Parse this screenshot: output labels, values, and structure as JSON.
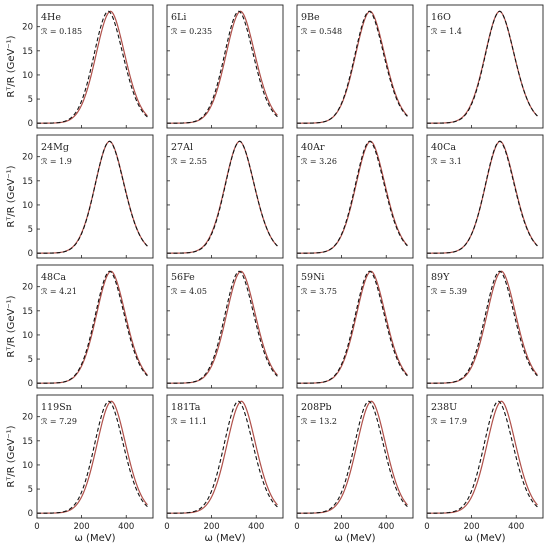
{
  "chart_data": {
    "type": "line",
    "grid": false,
    "layout": "4x4 panel grid, shared x axis per column, shared y axis per row",
    "xlabel": "ω (MeV)",
    "ylabel": "R^T/R (GeV^-1)",
    "xlim": [
      0,
      520
    ],
    "ylim": [
      -1,
      24.5
    ],
    "xticks": [
      0,
      200,
      400
    ],
    "yticks": [
      0,
      5,
      10,
      15,
      20
    ],
    "colors": {
      "solid": "#b0504a",
      "dashed": "#111111"
    },
    "shape": {
      "peak_y": 23.2,
      "width": 110,
      "tail_left": 0.45,
      "tail_right": 0.35
    },
    "panels": [
      {
        "nucleus": "4He",
        "ratio": "ℛ = 0.185",
        "solid_peak_x": 330,
        "dashed_peak_x": 320,
        "solid_tail": 0.53,
        "dashed_tail": 0.32
      },
      {
        "nucleus": "6Li",
        "ratio": "ℛ = 0.235",
        "solid_peak_x": 330,
        "dashed_peak_x": 322,
        "solid_tail": 0.4,
        "dashed_tail": 0.35
      },
      {
        "nucleus": "9Be",
        "ratio": "ℛ = 0.548",
        "solid_peak_x": 328,
        "dashed_peak_x": 324,
        "solid_tail": 0.39,
        "dashed_tail": 0.35
      },
      {
        "nucleus": "16O",
        "ratio": "ℛ = 1.4",
        "solid_peak_x": 326,
        "dashed_peak_x": 326,
        "solid_tail": 0.37,
        "dashed_tail": 0.37
      },
      {
        "nucleus": "24Mg",
        "ratio": "ℛ = 1.9",
        "solid_peak_x": 326,
        "dashed_peak_x": 325,
        "solid_tail": 0.38,
        "dashed_tail": 0.35
      },
      {
        "nucleus": "27Al",
        "ratio": "ℛ = 2.55",
        "solid_peak_x": 326,
        "dashed_peak_x": 326,
        "solid_tail": 0.37,
        "dashed_tail": 0.37
      },
      {
        "nucleus": "40Ar",
        "ratio": "ℛ = 3.26",
        "solid_peak_x": 330,
        "dashed_peak_x": 326,
        "solid_tail": 0.42,
        "dashed_tail": 0.35
      },
      {
        "nucleus": "40Ca",
        "ratio": "ℛ = 3.1",
        "solid_peak_x": 328,
        "dashed_peak_x": 326,
        "solid_tail": 0.4,
        "dashed_tail": 0.36
      },
      {
        "nucleus": "48Ca",
        "ratio": "ℛ = 4.21",
        "solid_peak_x": 332,
        "dashed_peak_x": 326,
        "solid_tail": 0.44,
        "dashed_tail": 0.35
      },
      {
        "nucleus": "56Fe",
        "ratio": "ℛ = 4.05",
        "solid_peak_x": 332,
        "dashed_peak_x": 324,
        "solid_tail": 0.46,
        "dashed_tail": 0.33
      },
      {
        "nucleus": "59Ni",
        "ratio": "ℛ = 3.75",
        "solid_peak_x": 332,
        "dashed_peak_x": 326,
        "solid_tail": 0.44,
        "dashed_tail": 0.35
      },
      {
        "nucleus": "89Y",
        "ratio": "ℛ = 5.39",
        "solid_peak_x": 334,
        "dashed_peak_x": 326,
        "solid_tail": 0.5,
        "dashed_tail": 0.35
      },
      {
        "nucleus": "119Sn",
        "ratio": "ℛ = 7.29",
        "solid_peak_x": 334,
        "dashed_peak_x": 322,
        "solid_tail": 0.5,
        "dashed_tail": 0.33
      },
      {
        "nucleus": "181Ta",
        "ratio": "ℛ = 11.1",
        "solid_peak_x": 334,
        "dashed_peak_x": 320,
        "solid_tail": 0.52,
        "dashed_tail": 0.3
      },
      {
        "nucleus": "208Pb",
        "ratio": "ℛ = 13.2",
        "solid_peak_x": 334,
        "dashed_peak_x": 322,
        "solid_tail": 0.52,
        "dashed_tail": 0.32
      },
      {
        "nucleus": "238U",
        "ratio": "ℛ = 17.9",
        "solid_peak_x": 334,
        "dashed_peak_x": 320,
        "solid_tail": 0.53,
        "dashed_tail": 0.3
      }
    ]
  }
}
